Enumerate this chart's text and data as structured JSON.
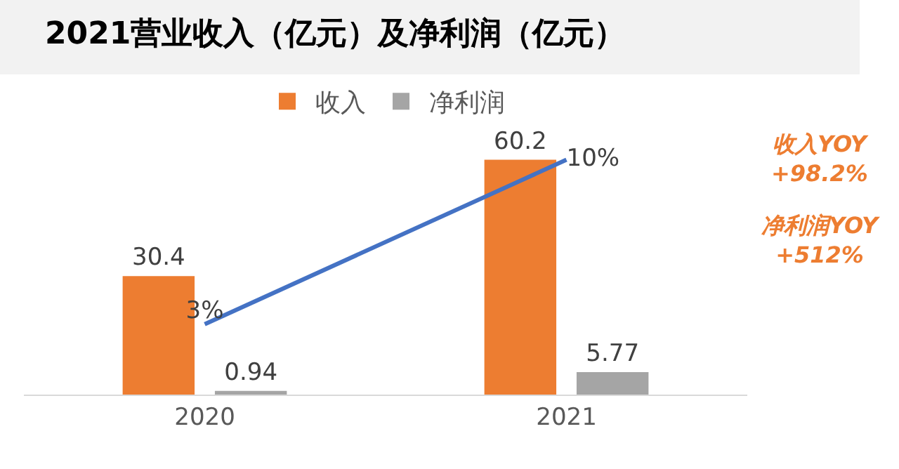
{
  "chart_data": {
    "type": "bar",
    "title": "2021营业收入（亿元）及净利润（亿元）",
    "categories": [
      "2020",
      "2021"
    ],
    "series": [
      {
        "name": "收入",
        "color": "#ed7d31",
        "values": [
          30.4,
          60.2
        ],
        "value_labels": [
          "30.4",
          "60.2"
        ]
      },
      {
        "name": "净利润",
        "color": "#a5a5a5",
        "values": [
          0.94,
          5.77
        ],
        "value_labels": [
          "0.94",
          "5.77"
        ]
      },
      {
        "type": "line",
        "axis": "y2",
        "color": "#4472c4",
        "values": [
          3,
          10
        ],
        "value_labels": [
          "3%",
          "10%"
        ]
      }
    ],
    "tick_labels": "x",
    "grid": false,
    "legend": "top",
    "marker": "none",
    "annotations": [
      "收入YOY +98.2%",
      "净利润YOY +512%"
    ]
  }
}
